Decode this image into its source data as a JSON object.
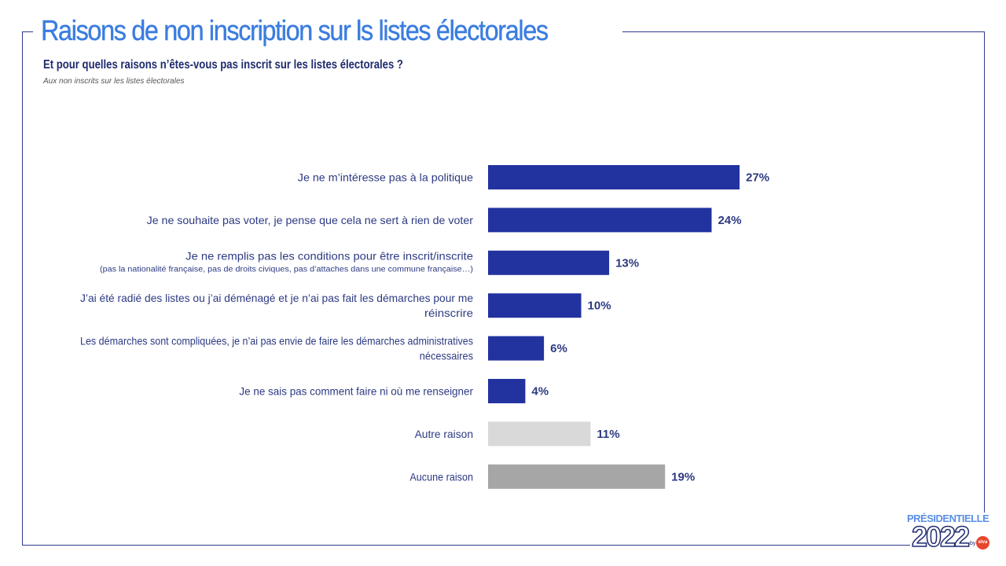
{
  "header": {
    "title": "Raisons de non inscription sur ls listes électorales",
    "subtitle": "Et pour quelles raisons n’êtes-vous pas inscrit sur les listes électorales ?",
    "base_note": "Aux non inscrits sur les listes électorales"
  },
  "chart_data": {
    "type": "bar",
    "orientation": "horizontal",
    "categories": [
      {
        "label": [
          "Je ne m’intéresse pas à la politique"
        ],
        "note": ""
      },
      {
        "label": [
          "Je ne souhaite pas voter, je pense que cela ne sert à rien de voter"
        ],
        "note": ""
      },
      {
        "label": [
          "Je ne remplis pas les conditions pour être inscrit/inscrite"
        ],
        "note": "(pas la nationalité française, pas de droits civiques, pas d’attaches dans une commune française…)"
      },
      {
        "label": [
          "J’ai été radié des listes ou j’ai déménagé et je n’ai pas fait les démarches pour me",
          "réinscrire"
        ],
        "note": ""
      },
      {
        "label": [
          "Les démarches sont compliquées, je n’ai pas envie de faire les démarches administratives",
          "nécessaires"
        ],
        "note": ""
      },
      {
        "label": [
          "Je ne sais pas comment faire ni où me renseigner"
        ],
        "note": ""
      },
      {
        "label": [
          "Autre raison"
        ],
        "note": ""
      },
      {
        "label": [
          "Aucune raison"
        ],
        "note": ""
      }
    ],
    "values": [
      27,
      24,
      13,
      10,
      6,
      4,
      11,
      19
    ],
    "value_labels": [
      "27%",
      "24%",
      "13%",
      "10%",
      "6%",
      "4%",
      "11%",
      "19%"
    ],
    "colors": [
      "#2233a0",
      "#2233a0",
      "#2233a0",
      "#2233a0",
      "#2233a0",
      "#2233a0",
      "#d9d9d9",
      "#a6a6a6"
    ],
    "unit": "%",
    "xlim": [
      0,
      27
    ],
    "grid": false,
    "legend": "none"
  },
  "logo": {
    "top_text": "PRÉSIDENTIELLE",
    "year": "2022",
    "by": "by",
    "badge": "elva"
  },
  "colors": {
    "frame": "#2e3a8c",
    "title": "#3b7de0",
    "text": "#2d3a82"
  }
}
